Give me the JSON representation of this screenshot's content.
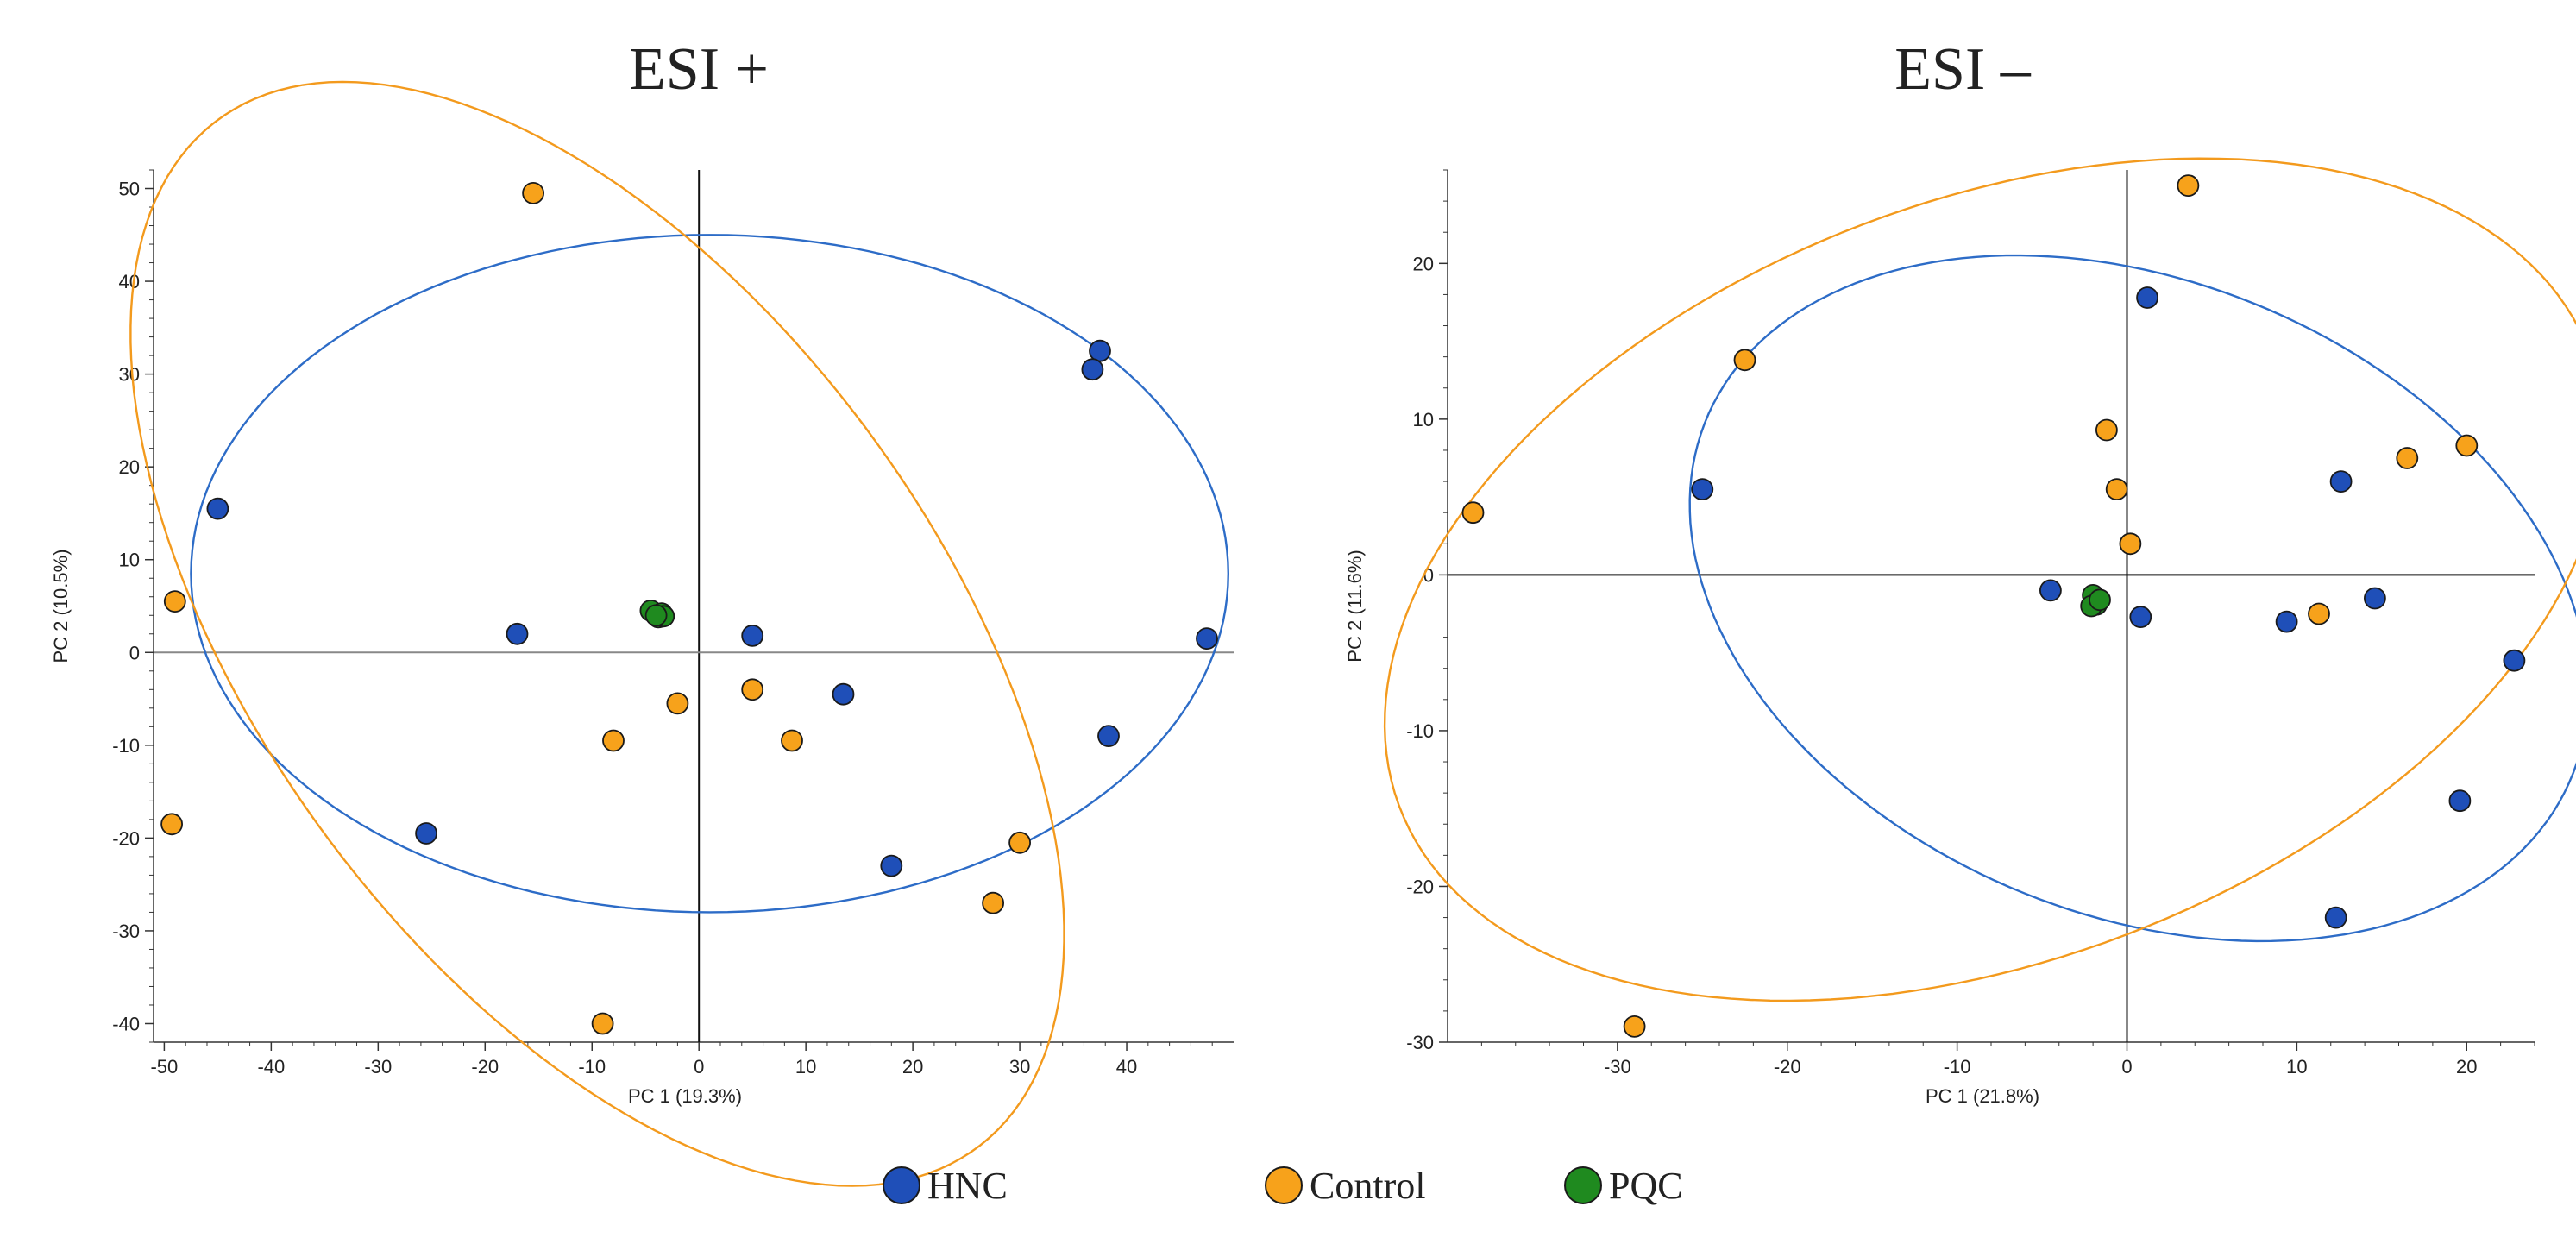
{
  "colors": {
    "HNC": "#1f4fb8",
    "Control": "#f7a21b",
    "PQC": "#1f8a1f",
    "ellipse_HNC": "#2d6cc7",
    "ellipse_Control": "#f39a1d",
    "axis": "#333333"
  },
  "legend": [
    {
      "key": "HNC",
      "label": "HNC"
    },
    {
      "key": "Control",
      "label": "Control"
    },
    {
      "key": "PQC",
      "label": "PQC"
    }
  ],
  "chart_data": [
    {
      "type": "scatter",
      "title": "ESI +",
      "xlabel": "PC 1 (19.3%)",
      "ylabel": "PC 2 (10.5%)",
      "xlim": [
        -51,
        50
      ],
      "ylim": [
        -42,
        52
      ],
      "xticks": [
        -50,
        -40,
        -30,
        -20,
        -10,
        0,
        10,
        20,
        30,
        40
      ],
      "yticks": [
        -40,
        -30,
        -20,
        -10,
        0,
        10,
        20,
        30,
        40,
        50
      ],
      "series": [
        {
          "name": "HNC",
          "points": [
            [
              -45,
              15.5
            ],
            [
              -17,
              2
            ],
            [
              5,
              1.8
            ],
            [
              13.5,
              -4.5
            ],
            [
              37.5,
              32.5
            ],
            [
              36.8,
              30.5
            ],
            [
              47.5,
              1.5
            ],
            [
              38.3,
              -9
            ],
            [
              -25.5,
              -19.5
            ],
            [
              18,
              -23
            ]
          ]
        },
        {
          "name": "Control",
          "points": [
            [
              -15.5,
              49.5
            ],
            [
              -49,
              5.5
            ],
            [
              -49.3,
              -18.5
            ],
            [
              -2,
              -5.5
            ],
            [
              -8,
              -9.5
            ],
            [
              5,
              -4
            ],
            [
              8.7,
              -9.5
            ],
            [
              30,
              -20.5
            ],
            [
              27.5,
              -27
            ],
            [
              -9,
              -40
            ]
          ]
        },
        {
          "name": "PQC",
          "points": [
            [
              -4.5,
              4.5
            ],
            [
              -3.5,
              4.2
            ],
            [
              -3.8,
              3.8
            ],
            [
              -3.3,
              3.9
            ],
            [
              -4.0,
              4.0
            ]
          ]
        }
      ],
      "ellipses": [
        {
          "name": "HNC",
          "center": [
            1,
            8.5
          ],
          "radii": [
            48.5,
            36.5
          ],
          "angle": 0
        },
        {
          "name": "Control",
          "center": [
            -9.5,
            2
          ],
          "radii": [
            66,
            33
          ],
          "angle": -60
        }
      ]
    },
    {
      "type": "scatter",
      "title": "ESI –",
      "xlabel": "PC 1 (21.8%)",
      "ylabel": "PC 2 (11.6%)",
      "xlim": [
        -40,
        24
      ],
      "ylim": [
        -30,
        26
      ],
      "xticks": [
        -30,
        -20,
        -10,
        0,
        10,
        20
      ],
      "yticks": [
        -30,
        -20,
        -10,
        0,
        10,
        20
      ],
      "series": [
        {
          "name": "HNC",
          "points": [
            [
              1.2,
              17.8
            ],
            [
              -25,
              5.5
            ],
            [
              12.6,
              6
            ],
            [
              -4.5,
              -1
            ],
            [
              0.8,
              -2.7
            ],
            [
              9.4,
              -3
            ],
            [
              14.6,
              -1.5
            ],
            [
              22.8,
              -5.5
            ],
            [
              19.6,
              -14.5
            ],
            [
              12.3,
              -22
            ]
          ]
        },
        {
          "name": "Control",
          "points": [
            [
              3.6,
              25
            ],
            [
              -22.5,
              13.8
            ],
            [
              -38.5,
              4
            ],
            [
              -1.2,
              9.3
            ],
            [
              -0.6,
              5.5
            ],
            [
              0.2,
              2
            ],
            [
              16.5,
              7.5
            ],
            [
              20,
              8.3
            ],
            [
              11.3,
              -2.5
            ],
            [
              -29,
              -29
            ]
          ]
        },
        {
          "name": "PQC",
          "points": [
            [
              -2.0,
              -1.3
            ],
            [
              -1.8,
              -1.9
            ],
            [
              -2.1,
              -2.0
            ],
            [
              -1.6,
              -1.6
            ]
          ]
        }
      ],
      "ellipses": [
        {
          "name": "HNC",
          "center": [
            0.7,
            -1.5
          ],
          "radii": [
            28,
            20
          ],
          "angle": -28
        },
        {
          "name": "Control",
          "center": [
            -7.8,
            -0.3
          ],
          "radii": [
            38,
            24
          ],
          "angle": 25
        }
      ]
    }
  ]
}
